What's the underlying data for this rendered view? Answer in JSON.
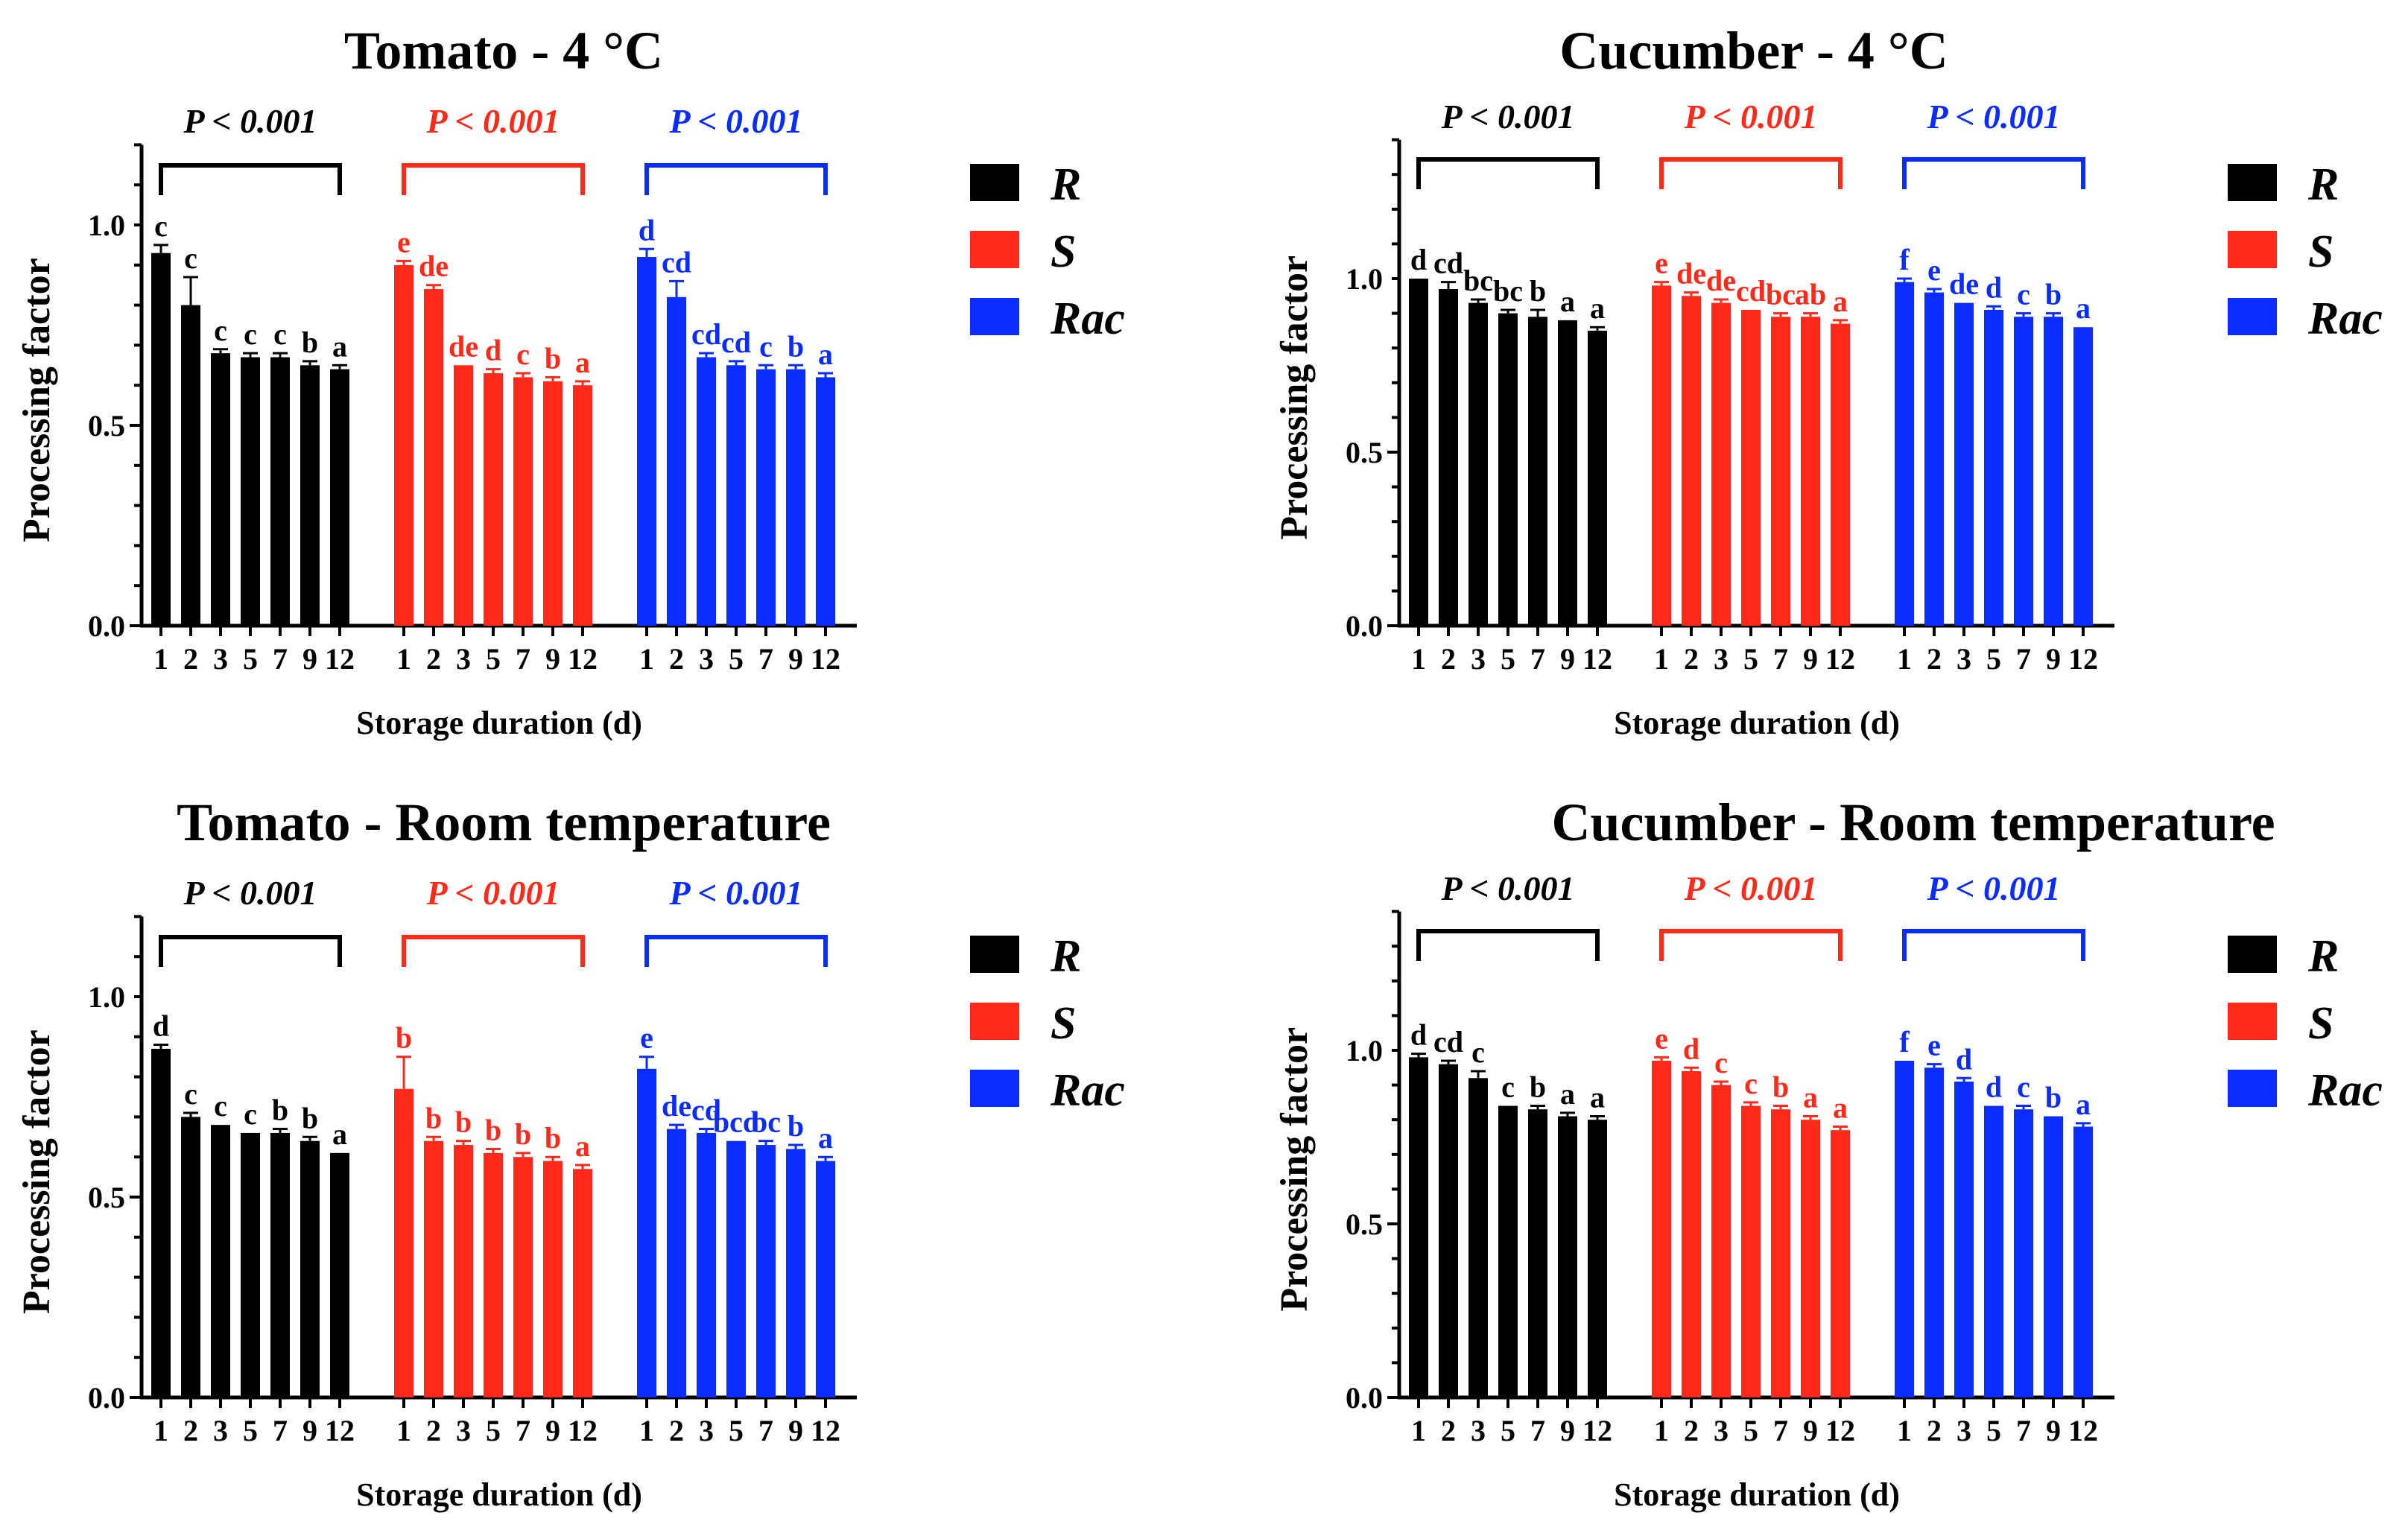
{
  "colors": {
    "R": "#000000",
    "S": "#ff2a1a",
    "Rac": "#0a2cff"
  },
  "chart_data": [
    {
      "type": "bar",
      "title": "Tomato - 4 °C",
      "xlabel": "Storage duration (d)",
      "ylabel": "Processing factor",
      "ylim": [
        0,
        1.2
      ],
      "yticks": [
        "0.0",
        "0.5",
        "1.0"
      ],
      "categories": [
        "1",
        "2",
        "3",
        "5",
        "7",
        "9",
        "12"
      ],
      "legend": [
        "R",
        "S",
        "Rac"
      ],
      "series": [
        {
          "name": "R",
          "values": [
            0.93,
            0.8,
            0.68,
            0.67,
            0.67,
            0.65,
            0.64
          ],
          "errors": [
            0.02,
            0.07,
            0.01,
            0.01,
            0.01,
            0.01,
            0.01
          ],
          "letters": [
            "c",
            "c",
            "c",
            "c",
            "c",
            "b",
            "a"
          ],
          "p_label": "P < 0.001"
        },
        {
          "name": "S",
          "values": [
            0.9,
            0.84,
            0.65,
            0.63,
            0.62,
            0.61,
            0.6
          ],
          "errors": [
            0.01,
            0.01,
            0.0,
            0.01,
            0.01,
            0.01,
            0.01
          ],
          "letters": [
            "e",
            "de",
            "de",
            "d",
            "c",
            "b",
            "a"
          ],
          "p_label": "P < 0.001"
        },
        {
          "name": "Rac",
          "values": [
            0.92,
            0.82,
            0.67,
            0.65,
            0.64,
            0.64,
            0.62
          ],
          "errors": [
            0.02,
            0.04,
            0.01,
            0.01,
            0.01,
            0.01,
            0.01
          ],
          "letters": [
            "d",
            "cd",
            "cd",
            "cd",
            "c",
            "b",
            "a"
          ],
          "p_label": "P < 0.001"
        }
      ]
    },
    {
      "type": "bar",
      "title": "Cucumber - 4 °C",
      "xlabel": "Storage duration (d)",
      "ylabel": "Processing factor",
      "ylim": [
        0,
        1.4
      ],
      "yticks": [
        "0.0",
        "0.5",
        "1.0"
      ],
      "categories": [
        "1",
        "2",
        "3",
        "5",
        "7",
        "9",
        "12"
      ],
      "legend": [
        "R",
        "S",
        "Rac"
      ],
      "series": [
        {
          "name": "R",
          "values": [
            1.0,
            0.97,
            0.93,
            0.9,
            0.89,
            0.88,
            0.85
          ],
          "errors": [
            0.0,
            0.02,
            0.01,
            0.01,
            0.02,
            0.0,
            0.01
          ],
          "letters": [
            "d",
            "cd",
            "bc",
            "bc",
            "b",
            "a",
            "a"
          ],
          "p_label": "P < 0.001"
        },
        {
          "name": "S",
          "values": [
            0.98,
            0.95,
            0.93,
            0.91,
            0.89,
            0.89,
            0.87
          ],
          "errors": [
            0.01,
            0.01,
            0.01,
            0.0,
            0.01,
            0.01,
            0.01
          ],
          "letters": [
            "e",
            "de",
            "de",
            "cd",
            "bc",
            "ab",
            "a"
          ],
          "p_label": "P < 0.001"
        },
        {
          "name": "Rac",
          "values": [
            0.99,
            0.96,
            0.93,
            0.91,
            0.89,
            0.89,
            0.86
          ],
          "errors": [
            0.01,
            0.01,
            0.0,
            0.01,
            0.01,
            0.01,
            0.0
          ],
          "letters": [
            "f",
            "e",
            "de",
            "d",
            "c",
            "b",
            "a"
          ],
          "p_label": "P < 0.001"
        }
      ]
    },
    {
      "type": "bar",
      "title": "Tomato - Room temperature",
      "xlabel": "Storage duration (d)",
      "ylabel": "Processing factor",
      "ylim": [
        0,
        1.2
      ],
      "yticks": [
        "0.0",
        "0.5",
        "1.0"
      ],
      "categories": [
        "1",
        "2",
        "3",
        "5",
        "7",
        "9",
        "12"
      ],
      "legend": [
        "R",
        "S",
        "Rac"
      ],
      "series": [
        {
          "name": "R",
          "values": [
            0.87,
            0.7,
            0.68,
            0.66,
            0.66,
            0.64,
            0.61
          ],
          "errors": [
            0.01,
            0.01,
            0.0,
            0.0,
            0.01,
            0.01,
            0.0
          ],
          "letters": [
            "d",
            "c",
            "c",
            "c",
            "b",
            "b",
            "a"
          ],
          "p_label": "P < 0.001"
        },
        {
          "name": "S",
          "values": [
            0.77,
            0.64,
            0.63,
            0.61,
            0.6,
            0.59,
            0.57
          ],
          "errors": [
            0.08,
            0.01,
            0.01,
            0.01,
            0.01,
            0.01,
            0.01
          ],
          "letters": [
            "b",
            "b",
            "b",
            "b",
            "b",
            "b",
            "a"
          ],
          "p_label": "P < 0.001"
        },
        {
          "name": "Rac",
          "values": [
            0.82,
            0.67,
            0.66,
            0.64,
            0.63,
            0.62,
            0.59
          ],
          "errors": [
            0.03,
            0.01,
            0.01,
            0.0,
            0.01,
            0.01,
            0.01
          ],
          "letters": [
            "e",
            "de",
            "cd",
            "bcd",
            "bc",
            "b",
            "a"
          ],
          "p_label": "P < 0.001"
        }
      ]
    },
    {
      "type": "bar",
      "title": "Cucumber - Room temperature",
      "xlabel": "Storage duration (d)",
      "ylabel": "Processing factor",
      "ylim": [
        0,
        1.4
      ],
      "yticks": [
        "0.0",
        "0.5",
        "1.0"
      ],
      "categories": [
        "1",
        "2",
        "3",
        "5",
        "7",
        "9",
        "12"
      ],
      "legend": [
        "R",
        "S",
        "Rac"
      ],
      "series": [
        {
          "name": "R",
          "values": [
            0.98,
            0.96,
            0.92,
            0.84,
            0.83,
            0.81,
            0.8
          ],
          "errors": [
            0.01,
            0.01,
            0.02,
            0.0,
            0.01,
            0.01,
            0.01
          ],
          "letters": [
            "d",
            "cd",
            "c",
            "c",
            "b",
            "a",
            "a"
          ],
          "p_label": "P < 0.001"
        },
        {
          "name": "S",
          "values": [
            0.97,
            0.94,
            0.9,
            0.84,
            0.83,
            0.8,
            0.77
          ],
          "errors": [
            0.01,
            0.01,
            0.01,
            0.01,
            0.01,
            0.01,
            0.01
          ],
          "letters": [
            "e",
            "d",
            "c",
            "c",
            "b",
            "a",
            "a"
          ],
          "p_label": "P < 0.001"
        },
        {
          "name": "Rac",
          "values": [
            0.97,
            0.95,
            0.91,
            0.84,
            0.83,
            0.81,
            0.78
          ],
          "errors": [
            0.0,
            0.01,
            0.01,
            0.0,
            0.01,
            0.0,
            0.01
          ],
          "letters": [
            "f",
            "e",
            "d",
            "d",
            "c",
            "b",
            "a"
          ],
          "p_label": "P < 0.001"
        }
      ]
    }
  ]
}
